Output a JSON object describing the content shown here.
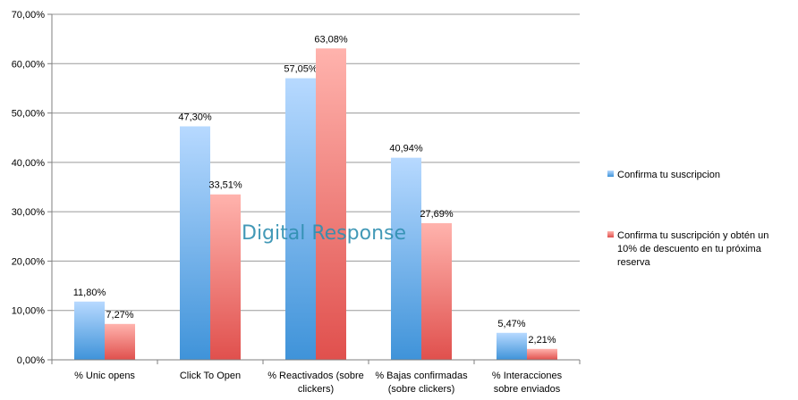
{
  "chart_data": {
    "type": "bar",
    "categories": [
      [
        "% Unic opens"
      ],
      [
        "Click To Open"
      ],
      [
        "% Reactivados (sobre",
        "clickers)"
      ],
      [
        "% Bajas confirmadas",
        "(sobre clickers)"
      ],
      [
        "% Interacciones",
        "sobre enviados"
      ]
    ],
    "series": [
      {
        "name": "Confirma tu suscripcion",
        "legend_lines": [
          "Confirma tu suscripcion"
        ],
        "values": [
          11.8,
          47.3,
          57.05,
          40.94,
          5.47
        ],
        "labels": [
          "11,80%",
          "47,30%",
          "57,05%",
          "40,94%",
          "5,47%"
        ],
        "color": "#5b9bd5"
      },
      {
        "name": "Confirma tu suscripción y obtén un 10% de descuento en tu próxima reserva",
        "legend_lines": [
          "Confirma tu suscripción y obtén un",
          "10% de descuento en tu próxima",
          "reserva"
        ],
        "values": [
          7.27,
          33.51,
          63.08,
          27.69,
          2.21
        ],
        "labels": [
          "7,27%",
          "33,51%",
          "63,08%",
          "27,69%",
          "2,21%"
        ],
        "color": "#e8585a"
      }
    ],
    "ylim": [
      0,
      70
    ],
    "yticks": [
      0,
      10,
      20,
      30,
      40,
      50,
      60,
      70
    ],
    "ytick_labels": [
      "0,00%",
      "10,00%",
      "20,00%",
      "30,00%",
      "40,00%",
      "50,00%",
      "60,00%",
      "70,00%"
    ],
    "grid": true,
    "legend_position": "right",
    "watermark": "Digital Response"
  }
}
